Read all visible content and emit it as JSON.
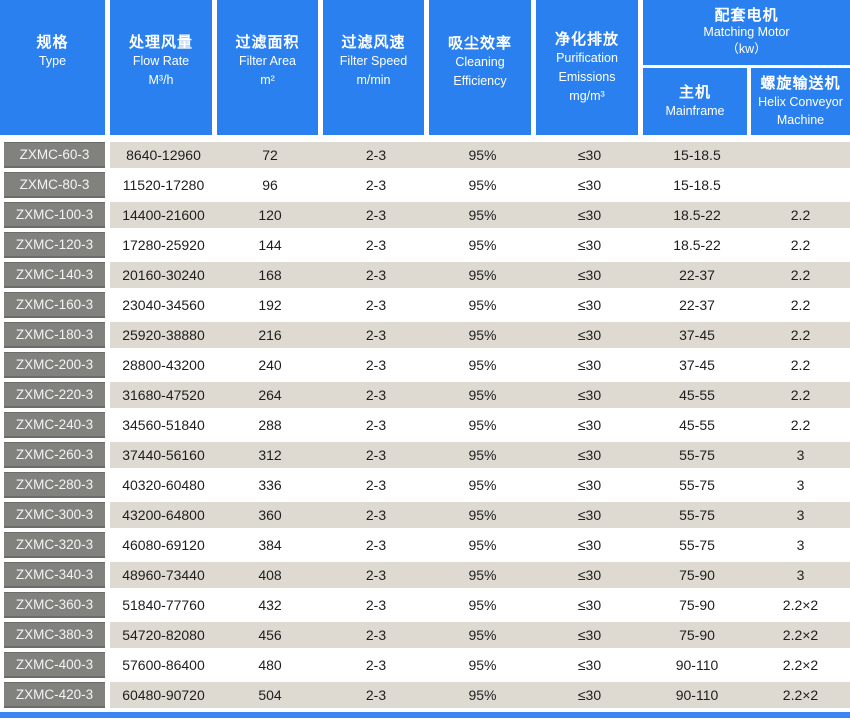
{
  "colors": {
    "header_blue": "#2b80f0",
    "row_beige": "#dfdad1",
    "row_white": "#ffffff",
    "model_gray": "#81817e",
    "accent_bar_blue": "#3b87f2",
    "data_text": "#1e1e1e",
    "header_text": "#ffffff"
  },
  "table": {
    "header": {
      "type": {
        "zh": "规格",
        "en": "Type"
      },
      "flow_rate": {
        "zh": "处理风量",
        "en": "Flow Rate",
        "unit": "M³/h"
      },
      "filter_area": {
        "zh": "过滤面积",
        "en": "Filter Area",
        "unit": "m²"
      },
      "filter_speed": {
        "zh": "过滤风速",
        "en": "Filter Speed",
        "unit": "m/min"
      },
      "cleaning_efficiency": {
        "zh": "吸尘效率",
        "en1": "Cleaning",
        "en2": "Efficiency"
      },
      "purification_emissions": {
        "zh": "净化排放",
        "en1": "Purification",
        "en2": "Emissions",
        "unit": "mg/m³"
      },
      "matching_motor": {
        "zh": "配套电机",
        "en": "Matching Motor",
        "unit": "（kw）"
      },
      "mainframe": {
        "zh": "主机",
        "en": "Mainframe"
      },
      "helix_conveyor": {
        "zh": "螺旋输送机",
        "en1": "Helix Conveyor",
        "en2": "Machine"
      }
    },
    "rows": [
      {
        "model": "ZXMC-60-3",
        "flow_rate": "8640-12960",
        "filter_area": "72",
        "filter_speed": "2-3",
        "efficiency": "95%",
        "emissions": "≤30",
        "mainframe": "15-18.5",
        "helix": ""
      },
      {
        "model": "ZXMC-80-3",
        "flow_rate": "11520-17280",
        "filter_area": "96",
        "filter_speed": "2-3",
        "efficiency": "95%",
        "emissions": "≤30",
        "mainframe": "15-18.5",
        "helix": ""
      },
      {
        "model": "ZXMC-100-3",
        "flow_rate": "14400-21600",
        "filter_area": "120",
        "filter_speed": "2-3",
        "efficiency": "95%",
        "emissions": "≤30",
        "mainframe": "18.5-22",
        "helix": "2.2"
      },
      {
        "model": "ZXMC-120-3",
        "flow_rate": "17280-25920",
        "filter_area": "144",
        "filter_speed": "2-3",
        "efficiency": "95%",
        "emissions": "≤30",
        "mainframe": "18.5-22",
        "helix": "2.2"
      },
      {
        "model": "ZXMC-140-3",
        "flow_rate": "20160-30240",
        "filter_area": "168",
        "filter_speed": "2-3",
        "efficiency": "95%",
        "emissions": "≤30",
        "mainframe": "22-37",
        "helix": "2.2"
      },
      {
        "model": "ZXMC-160-3",
        "flow_rate": "23040-34560",
        "filter_area": "192",
        "filter_speed": "2-3",
        "efficiency": "95%",
        "emissions": "≤30",
        "mainframe": "22-37",
        "helix": "2.2"
      },
      {
        "model": "ZXMC-180-3",
        "flow_rate": "25920-38880",
        "filter_area": "216",
        "filter_speed": "2-3",
        "efficiency": "95%",
        "emissions": "≤30",
        "mainframe": "37-45",
        "helix": "2.2"
      },
      {
        "model": "ZXMC-200-3",
        "flow_rate": "28800-43200",
        "filter_area": "240",
        "filter_speed": "2-3",
        "efficiency": "95%",
        "emissions": "≤30",
        "mainframe": "37-45",
        "helix": "2.2"
      },
      {
        "model": "ZXMC-220-3",
        "flow_rate": "31680-47520",
        "filter_area": "264",
        "filter_speed": "2-3",
        "efficiency": "95%",
        "emissions": "≤30",
        "mainframe": "45-55",
        "helix": "2.2"
      },
      {
        "model": "ZXMC-240-3",
        "flow_rate": "34560-51840",
        "filter_area": "288",
        "filter_speed": "2-3",
        "efficiency": "95%",
        "emissions": "≤30",
        "mainframe": "45-55",
        "helix": "2.2"
      },
      {
        "model": "ZXMC-260-3",
        "flow_rate": "37440-56160",
        "filter_area": "312",
        "filter_speed": "2-3",
        "efficiency": "95%",
        "emissions": "≤30",
        "mainframe": "55-75",
        "helix": "3"
      },
      {
        "model": "ZXMC-280-3",
        "flow_rate": "40320-60480",
        "filter_area": "336",
        "filter_speed": "2-3",
        "efficiency": "95%",
        "emissions": "≤30",
        "mainframe": "55-75",
        "helix": "3"
      },
      {
        "model": "ZXMC-300-3",
        "flow_rate": "43200-64800",
        "filter_area": "360",
        "filter_speed": "2-3",
        "efficiency": "95%",
        "emissions": "≤30",
        "mainframe": "55-75",
        "helix": "3"
      },
      {
        "model": "ZXMC-320-3",
        "flow_rate": "46080-69120",
        "filter_area": "384",
        "filter_speed": "2-3",
        "efficiency": "95%",
        "emissions": "≤30",
        "mainframe": "55-75",
        "helix": "3"
      },
      {
        "model": "ZXMC-340-3",
        "flow_rate": "48960-73440",
        "filter_area": "408",
        "filter_speed": "2-3",
        "efficiency": "95%",
        "emissions": "≤30",
        "mainframe": "75-90",
        "helix": "3"
      },
      {
        "model": "ZXMC-360-3",
        "flow_rate": "51840-77760",
        "filter_area": "432",
        "filter_speed": "2-3",
        "efficiency": "95%",
        "emissions": "≤30",
        "mainframe": "75-90",
        "helix": "2.2×2"
      },
      {
        "model": "ZXMC-380-3",
        "flow_rate": "54720-82080",
        "filter_area": "456",
        "filter_speed": "2-3",
        "efficiency": "95%",
        "emissions": "≤30",
        "mainframe": "75-90",
        "helix": "2.2×2"
      },
      {
        "model": "ZXMC-400-3",
        "flow_rate": "57600-86400",
        "filter_area": "480",
        "filter_speed": "2-3",
        "efficiency": "95%",
        "emissions": "≤30",
        "mainframe": "90-110",
        "helix": "2.2×2"
      },
      {
        "model": "ZXMC-420-3",
        "flow_rate": "60480-90720",
        "filter_area": "504",
        "filter_speed": "2-3",
        "efficiency": "95%",
        "emissions": "≤30",
        "mainframe": "90-110",
        "helix": "2.2×2"
      }
    ]
  }
}
